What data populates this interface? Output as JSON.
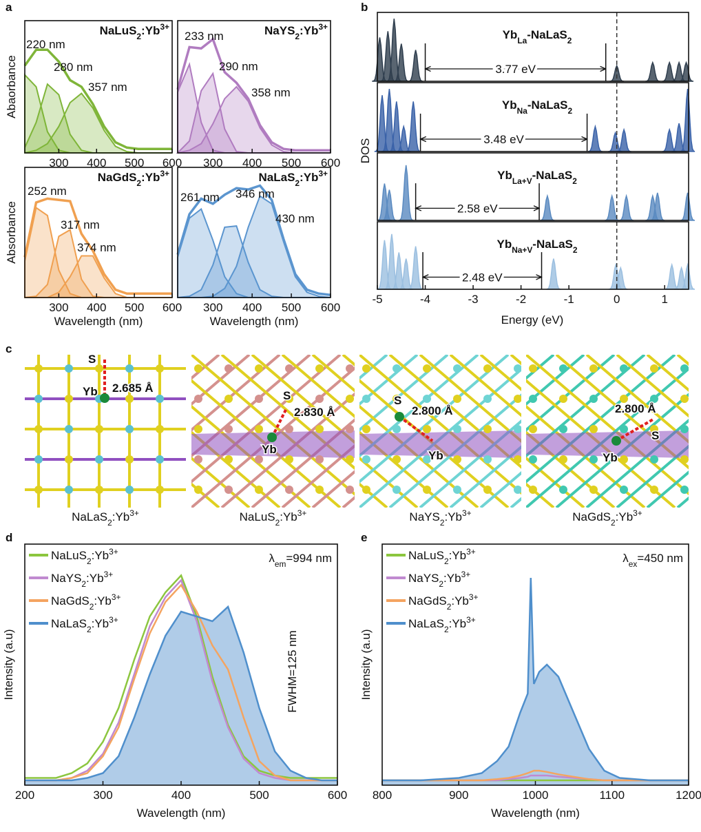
{
  "panel_labels": [
    "a",
    "b",
    "c",
    "d",
    "e"
  ],
  "chart_data": [
    {
      "type": "absorbance",
      "label": [
        {
          "t": "NaLuS"
        },
        {
          "t": "2",
          "s": "sub"
        },
        {
          "t": ":Yb"
        },
        {
          "t": "3+",
          "s": "sup"
        }
      ],
      "ylabel": "Abaorbance",
      "xlim": [
        210,
        600
      ],
      "ylim": [
        0,
        1
      ],
      "xticks": [
        300,
        400,
        500,
        600
      ],
      "color": "#7fb539",
      "x": [
        210,
        240,
        270,
        300,
        330,
        360,
        390,
        420,
        450,
        480,
        510,
        540,
        570,
        600
      ],
      "total": [
        0.66,
        0.78,
        0.78,
        0.69,
        0.55,
        0.5,
        0.37,
        0.2,
        0.08,
        0.04,
        0.03,
        0.03,
        0.03,
        0.03
      ],
      "components": [
        [
          0.59,
          0.5,
          0.16,
          0.02,
          0,
          0,
          0,
          0,
          0,
          0,
          0,
          0,
          0,
          0
        ],
        [
          0.04,
          0.23,
          0.52,
          0.44,
          0.14,
          0.02,
          0,
          0,
          0,
          0,
          0,
          0,
          0,
          0
        ],
        [
          0,
          0.02,
          0.07,
          0.2,
          0.38,
          0.45,
          0.34,
          0.17,
          0.05,
          0.01,
          0,
          0,
          0,
          0
        ]
      ],
      "annotations": [
        "220 nm",
        "280 nm",
        "357 nm"
      ]
    },
    {
      "type": "absorbance",
      "label": [
        {
          "t": "NaYS"
        },
        {
          "t": "2",
          "s": "sub"
        },
        {
          "t": ":Yb"
        },
        {
          "t": "3+",
          "s": "sup"
        }
      ],
      "xlim": [
        210,
        600
      ],
      "ylim": [
        0,
        1
      ],
      "xticks": [
        300,
        400,
        500,
        600
      ],
      "color": "#b07cc0",
      "x": [
        210,
        240,
        270,
        300,
        330,
        360,
        390,
        420,
        450,
        480,
        510,
        540,
        570,
        600
      ],
      "total": [
        0.48,
        0.8,
        0.79,
        0.86,
        0.61,
        0.53,
        0.41,
        0.21,
        0.08,
        0.03,
        0.02,
        0.02,
        0.02,
        0.02
      ],
      "components": [
        [
          0.46,
          0.67,
          0.23,
          0.02,
          0,
          0,
          0,
          0,
          0,
          0,
          0,
          0,
          0,
          0
        ],
        [
          0,
          0.09,
          0.47,
          0.6,
          0.18,
          0.01,
          0,
          0,
          0,
          0,
          0,
          0,
          0,
          0
        ],
        [
          0,
          0.02,
          0.07,
          0.22,
          0.41,
          0.5,
          0.39,
          0.19,
          0.06,
          0.01,
          0,
          0,
          0,
          0
        ]
      ],
      "annotations": [
        "233 nm",
        "290 nm",
        "358 nm"
      ]
    },
    {
      "type": "absorbance",
      "label": [
        {
          "t": "NaGdS"
        },
        {
          "t": "2",
          "s": "sub"
        },
        {
          "t": ":Yb"
        },
        {
          "t": "3+",
          "s": "sup"
        }
      ],
      "ylabel": "Absorbance",
      "xlabel": "Wavelength (nm)",
      "xlim": [
        210,
        600
      ],
      "ylim": [
        0,
        1
      ],
      "xticks": [
        300,
        400,
        500,
        600
      ],
      "color": "#f0a050",
      "x": [
        210,
        240,
        270,
        300,
        330,
        360,
        390,
        420,
        450,
        480,
        510,
        540,
        570,
        600
      ],
      "total": [
        0.31,
        0.73,
        0.76,
        0.75,
        0.74,
        0.49,
        0.36,
        0.18,
        0.06,
        0.03,
        0.03,
        0.03,
        0.03,
        0.03
      ],
      "components": [
        [
          0.28,
          0.69,
          0.63,
          0.21,
          0.03,
          0,
          0,
          0,
          0,
          0,
          0,
          0,
          0,
          0
        ],
        [
          0,
          0.01,
          0.1,
          0.47,
          0.52,
          0.14,
          0.01,
          0,
          0,
          0,
          0,
          0,
          0,
          0
        ],
        [
          0,
          0,
          0,
          0.04,
          0.16,
          0.32,
          0.32,
          0.15,
          0.03,
          0,
          0,
          0,
          0,
          0
        ]
      ],
      "annotations": [
        "252 nm",
        "317 nm",
        "374 nm"
      ]
    },
    {
      "type": "absorbance",
      "label": [
        {
          "t": "NaLaS"
        },
        {
          "t": "2",
          "s": "sub"
        },
        {
          "t": ":Yb"
        },
        {
          "t": "3+",
          "s": "sup"
        }
      ],
      "xlabel": "Wavelength (nm)",
      "xlim": [
        210,
        600
      ],
      "ylim": [
        0,
        1
      ],
      "xticks": [
        300,
        400,
        500,
        600
      ],
      "color": "#5b95cf",
      "x": [
        210,
        240,
        270,
        300,
        330,
        360,
        390,
        420,
        450,
        480,
        510,
        540,
        570,
        600
      ],
      "total": [
        0.33,
        0.64,
        0.76,
        0.72,
        0.79,
        0.84,
        0.83,
        0.86,
        0.75,
        0.45,
        0.18,
        0.06,
        0.03,
        0.02
      ],
      "components": [
        [
          0.31,
          0.61,
          0.68,
          0.44,
          0.16,
          0.03,
          0,
          0,
          0,
          0,
          0,
          0,
          0,
          0
        ],
        [
          0,
          0.01,
          0.06,
          0.25,
          0.54,
          0.55,
          0.27,
          0.06,
          0.01,
          0,
          0,
          0,
          0,
          0
        ],
        [
          0,
          0,
          0,
          0.01,
          0.07,
          0.24,
          0.54,
          0.78,
          0.72,
          0.43,
          0.16,
          0.04,
          0.01,
          0
        ]
      ],
      "annotations": [
        "261 nm",
        "346 nm",
        "430 nm"
      ]
    },
    {
      "type": "dos",
      "title": [
        {
          "t": "Yb"
        },
        {
          "t": "La",
          "s": "sub"
        },
        {
          "t": "-NaLaS"
        },
        {
          "t": "2",
          "s": "sub"
        }
      ],
      "ylabel": "DOS",
      "xlim": [
        -5,
        1.5
      ],
      "ylim": [
        0,
        1.1
      ],
      "vline": 0,
      "color": "#2f3e4e",
      "x": [
        -4.95,
        -4.78,
        -4.65,
        -4.5,
        -4.2,
        0,
        0.75,
        1.1,
        1.3,
        1.45
      ],
      "values": [
        0.7,
        0.8,
        1.0,
        0.6,
        0.5,
        0.25,
        0.3,
        0.3,
        0.3,
        0.3
      ],
      "gap": {
        "label": "3.77 eV",
        "from": -4.0,
        "to": -0.23
      }
    },
    {
      "type": "dos",
      "title": [
        {
          "t": "Yb"
        },
        {
          "t": "Na",
          "s": "sub"
        },
        {
          "t": "-NaLaS"
        },
        {
          "t": "2",
          "s": "sub"
        }
      ],
      "xlim": [
        -5,
        1.5
      ],
      "ylim": [
        0,
        1.1
      ],
      "vline": 0,
      "color": "#3a62a8",
      "x": [
        -4.9,
        -4.75,
        -4.6,
        -4.45,
        -4.25,
        -0.45,
        -0.03,
        0.15,
        1.1,
        1.3,
        1.48
      ],
      "values": [
        0.9,
        1.0,
        0.8,
        0.4,
        0.8,
        0.4,
        0.3,
        0.35,
        0.35,
        0.45,
        1.0
      ],
      "gap": {
        "label": "3.48 eV",
        "from": -4.1,
        "to": -0.62
      }
    },
    {
      "type": "dos",
      "title": [
        {
          "t": "Yb"
        },
        {
          "t": "La+V",
          "s": "sub"
        },
        {
          "t": "-NaLaS"
        },
        {
          "t": "2",
          "s": "sub"
        }
      ],
      "xlim": [
        -5,
        1.5
      ],
      "ylim": [
        0,
        1.1
      ],
      "vline": 0,
      "color": "#5a8ac0",
      "x": [
        -4.85,
        -4.75,
        -4.4,
        -1.45,
        -0.1,
        0.2,
        0.75,
        0.85,
        1.48
      ],
      "values": [
        0.6,
        0.5,
        0.9,
        0.4,
        0.4,
        0.4,
        0.4,
        0.45,
        0.45
      ],
      "gap": {
        "label": "2.58 eV",
        "from": -4.2,
        "to": -1.62
      }
    },
    {
      "type": "dos",
      "title": [
        {
          "t": "Yb"
        },
        {
          "t": "Na+V",
          "s": "sub"
        },
        {
          "t": "-NaLaS"
        },
        {
          "t": "2",
          "s": "sub"
        }
      ],
      "xlabel": "Energy (eV)",
      "xlim": [
        -5,
        1.5
      ],
      "ylim": [
        0,
        1.1
      ],
      "vline": 0,
      "color": "#9bbfe0",
      "xticks": [
        -5,
        -4,
        -3,
        -2,
        -1,
        0,
        1
      ],
      "x": [
        -4.85,
        -4.7,
        -4.55,
        -4.4,
        -4.2,
        -1.32,
        -0.02,
        0.08,
        1.15,
        1.35,
        1.48
      ],
      "values": [
        0.8,
        0.9,
        0.6,
        0.5,
        0.7,
        0.5,
        0.4,
        0.35,
        0.4,
        0.35,
        0.4
      ],
      "gap": {
        "label": "2.48 eV",
        "from": -4.05,
        "to": -1.57
      }
    },
    {
      "type": "line",
      "ylabel": "Intensity (a.u)",
      "xlabel": "Wavelength (nm)",
      "xlim": [
        200,
        600
      ],
      "ylim": [
        0,
        1
      ],
      "xticks": [
        200,
        300,
        400,
        500,
        600
      ],
      "annotation": [
        {
          "t": "λ"
        },
        {
          "t": "em",
          "s": "sub"
        },
        {
          "t": "=994 nm"
        }
      ],
      "note": "FWHM=125 nm",
      "note_color": "#3d7fc4",
      "x": [
        200,
        220,
        240,
        260,
        280,
        300,
        320,
        340,
        360,
        380,
        400,
        420,
        440,
        460,
        480,
        500,
        520,
        540,
        560,
        580,
        600
      ],
      "series": [
        {
          "name": [
            {
              "t": "NaLuS"
            },
            {
              "t": "2",
              "s": "sub"
            },
            {
              "t": ":Yb"
            },
            {
              "t": "3+",
              "s": "sup"
            }
          ],
          "color": "#8cc63f",
          "values": [
            0.03,
            0.03,
            0.03,
            0.05,
            0.09,
            0.18,
            0.32,
            0.52,
            0.7,
            0.8,
            0.87,
            0.7,
            0.45,
            0.25,
            0.12,
            0.06,
            0.04,
            0.03,
            0.03,
            0.03,
            0.03
          ]
        },
        {
          "name": [
            {
              "t": "NaYS"
            },
            {
              "t": "2",
              "s": "sub"
            },
            {
              "t": ":Yb"
            },
            {
              "t": "3+",
              "s": "sup"
            }
          ],
          "color": "#c08ad0",
          "values": [
            0.02,
            0.02,
            0.02,
            0.03,
            0.06,
            0.13,
            0.26,
            0.46,
            0.66,
            0.78,
            0.85,
            0.68,
            0.43,
            0.24,
            0.11,
            0.05,
            0.03,
            0.02,
            0.02,
            0.02,
            0.02
          ]
        },
        {
          "name": [
            {
              "t": "NaGdS"
            },
            {
              "t": "2",
              "s": "sub"
            },
            {
              "t": ":Yb"
            },
            {
              "t": "3+",
              "s": "sup"
            }
          ],
          "color": "#f4a460",
          "values": [
            0.02,
            0.02,
            0.02,
            0.03,
            0.05,
            0.12,
            0.24,
            0.44,
            0.63,
            0.76,
            0.83,
            0.72,
            0.58,
            0.48,
            0.28,
            0.1,
            0.04,
            0.02,
            0.02,
            0.02,
            0.02
          ]
        },
        {
          "name": [
            {
              "t": "NaLaS"
            },
            {
              "t": "2",
              "s": "sub"
            },
            {
              "t": ":Yb"
            },
            {
              "t": "3+",
              "s": "sup"
            }
          ],
          "color": "#4f8fcc",
          "fill": true,
          "values": [
            0.02,
            0.02,
            0.02,
            0.02,
            0.03,
            0.05,
            0.12,
            0.28,
            0.46,
            0.62,
            0.72,
            0.7,
            0.68,
            0.74,
            0.55,
            0.32,
            0.14,
            0.06,
            0.03,
            0.02,
            0.02
          ]
        }
      ]
    },
    {
      "type": "line",
      "ylabel": "Intensity (a.u)",
      "xlabel": "Wavelength (nm)",
      "xlim": [
        800,
        1200
      ],
      "ylim": [
        0,
        1
      ],
      "xticks": [
        800,
        900,
        1000,
        1100,
        1200
      ],
      "annotation": [
        {
          "t": "λ"
        },
        {
          "t": "ex",
          "s": "sub"
        },
        {
          "t": "=450 nm"
        }
      ],
      "x": [
        800,
        850,
        900,
        930,
        950,
        965,
        980,
        990,
        994,
        998,
        1005,
        1015,
        1030,
        1050,
        1070,
        1090,
        1110,
        1150,
        1200
      ],
      "series": [
        {
          "name": [
            {
              "t": "NaLuS"
            },
            {
              "t": "2",
              "s": "sub"
            },
            {
              "t": ":Yb"
            },
            {
              "t": "3+",
              "s": "sup"
            }
          ],
          "color": "#8cc63f",
          "values": [
            0.02,
            0.02,
            0.02,
            0.02,
            0.02,
            0.02,
            0.02,
            0.02,
            0.02,
            0.02,
            0.02,
            0.02,
            0.02,
            0.02,
            0.02,
            0.02,
            0.02,
            0.02,
            0.02
          ]
        },
        {
          "name": [
            {
              "t": "NaYS"
            },
            {
              "t": "2",
              "s": "sub"
            },
            {
              "t": ":Yb"
            },
            {
              "t": "3+",
              "s": "sup"
            }
          ],
          "color": "#c08ad0",
          "values": [
            0.02,
            0.02,
            0.02,
            0.02,
            0.02,
            0.025,
            0.03,
            0.035,
            0.04,
            0.04,
            0.04,
            0.04,
            0.035,
            0.03,
            0.025,
            0.02,
            0.02,
            0.02,
            0.02
          ]
        },
        {
          "name": [
            {
              "t": "NaGdS"
            },
            {
              "t": "2",
              "s": "sub"
            },
            {
              "t": ":Yb"
            },
            {
              "t": "3+",
              "s": "sup"
            }
          ],
          "color": "#f4a460",
          "values": [
            0.02,
            0.02,
            0.02,
            0.02,
            0.025,
            0.03,
            0.04,
            0.05,
            0.055,
            0.06,
            0.06,
            0.055,
            0.045,
            0.035,
            0.025,
            0.02,
            0.02,
            0.02,
            0.02
          ]
        },
        {
          "name": [
            {
              "t": "NaLaS"
            },
            {
              "t": "2",
              "s": "sub"
            },
            {
              "t": ":Yb"
            },
            {
              "t": "3+",
              "s": "sup"
            }
          ],
          "color": "#4f8fcc",
          "fill": true,
          "values": [
            0.02,
            0.02,
            0.03,
            0.05,
            0.1,
            0.16,
            0.3,
            0.38,
            0.86,
            0.42,
            0.47,
            0.5,
            0.45,
            0.3,
            0.15,
            0.06,
            0.03,
            0.02,
            0.02
          ]
        }
      ]
    }
  ],
  "structures": [
    {
      "caption": [
        {
          "t": "NaLaS"
        },
        {
          "t": "2",
          "s": "sub"
        },
        {
          "t": ":Yb"
        },
        {
          "t": "3+",
          "s": "sup"
        }
      ],
      "labels": [
        "S",
        "Yb",
        "2.685 Å"
      ]
    },
    {
      "caption": [
        {
          "t": "NaLuS"
        },
        {
          "t": "2",
          "s": "sub"
        },
        {
          "t": ":Yb"
        },
        {
          "t": "3+",
          "s": "sup"
        }
      ],
      "labels": [
        "S",
        "2.830 Å",
        "Yb"
      ]
    },
    {
      "caption": [
        {
          "t": "NaYS"
        },
        {
          "t": "2",
          "s": "sub"
        },
        {
          "t": ":Yb"
        },
        {
          "t": "3+",
          "s": "sup"
        }
      ],
      "labels": [
        "S",
        "2.800 Å",
        "Yb"
      ]
    },
    {
      "caption": [
        {
          "t": "NaGdS"
        },
        {
          "t": "2",
          "s": "sub"
        },
        {
          "t": ":Yb"
        },
        {
          "t": "3+",
          "s": "sup"
        }
      ],
      "labels": [
        "2.800 Å",
        "S",
        "Yb"
      ]
    }
  ]
}
